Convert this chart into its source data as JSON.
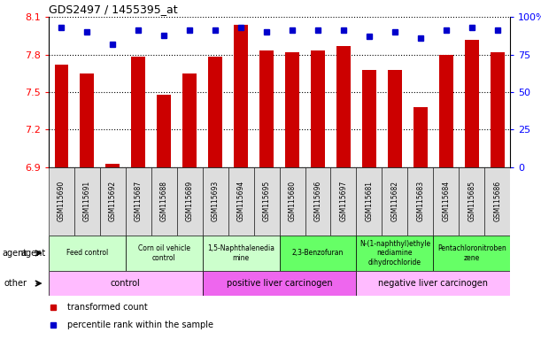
{
  "title": "GDS2497 / 1455395_at",
  "samples": [
    "GSM115690",
    "GSM115691",
    "GSM115692",
    "GSM115687",
    "GSM115688",
    "GSM115689",
    "GSM115693",
    "GSM115694",
    "GSM115695",
    "GSM115680",
    "GSM115696",
    "GSM115697",
    "GSM115681",
    "GSM115682",
    "GSM115683",
    "GSM115684",
    "GSM115685",
    "GSM115686"
  ],
  "transformed_counts": [
    7.72,
    7.65,
    6.93,
    7.78,
    7.48,
    7.65,
    7.78,
    8.04,
    7.83,
    7.82,
    7.83,
    7.87,
    7.68,
    7.68,
    7.38,
    7.8,
    7.92,
    7.82
  ],
  "percentile_ranks": [
    93,
    90,
    82,
    91,
    88,
    91,
    91,
    93,
    90,
    91,
    91,
    91,
    87,
    90,
    86,
    91,
    93,
    91
  ],
  "y_min": 6.9,
  "y_max": 8.1,
  "y_ticks": [
    6.9,
    7.2,
    7.5,
    7.8,
    8.1
  ],
  "y2_ticks": [
    0,
    25,
    50,
    75,
    100
  ],
  "bar_color": "#cc0000",
  "dot_color": "#0000cc",
  "agent_groups": [
    {
      "label": "Feed control",
      "start": 0,
      "end": 3,
      "color": "#ccffcc"
    },
    {
      "label": "Corn oil vehicle\ncontrol",
      "start": 3,
      "end": 6,
      "color": "#ccffcc"
    },
    {
      "label": "1,5-Naphthalenedia\nmine",
      "start": 6,
      "end": 9,
      "color": "#ccffcc"
    },
    {
      "label": "2,3-Benzofuran",
      "start": 9,
      "end": 12,
      "color": "#66ff66"
    },
    {
      "label": "N-(1-naphthyl)ethyle\nnediamine\ndihydrochloride",
      "start": 12,
      "end": 15,
      "color": "#66ff66"
    },
    {
      "label": "Pentachloronitroben\nzene",
      "start": 15,
      "end": 18,
      "color": "#66ff66"
    }
  ],
  "other_groups": [
    {
      "label": "control",
      "start": 0,
      "end": 6,
      "color": "#ffbbff"
    },
    {
      "label": "positive liver carcinogen",
      "start": 6,
      "end": 12,
      "color": "#ee66ee"
    },
    {
      "label": "negative liver carcinogen",
      "start": 12,
      "end": 18,
      "color": "#ffbbff"
    }
  ],
  "legend_items": [
    {
      "label": "transformed count",
      "color": "#cc0000"
    },
    {
      "label": "percentile rank within the sample",
      "color": "#0000cc"
    }
  ]
}
